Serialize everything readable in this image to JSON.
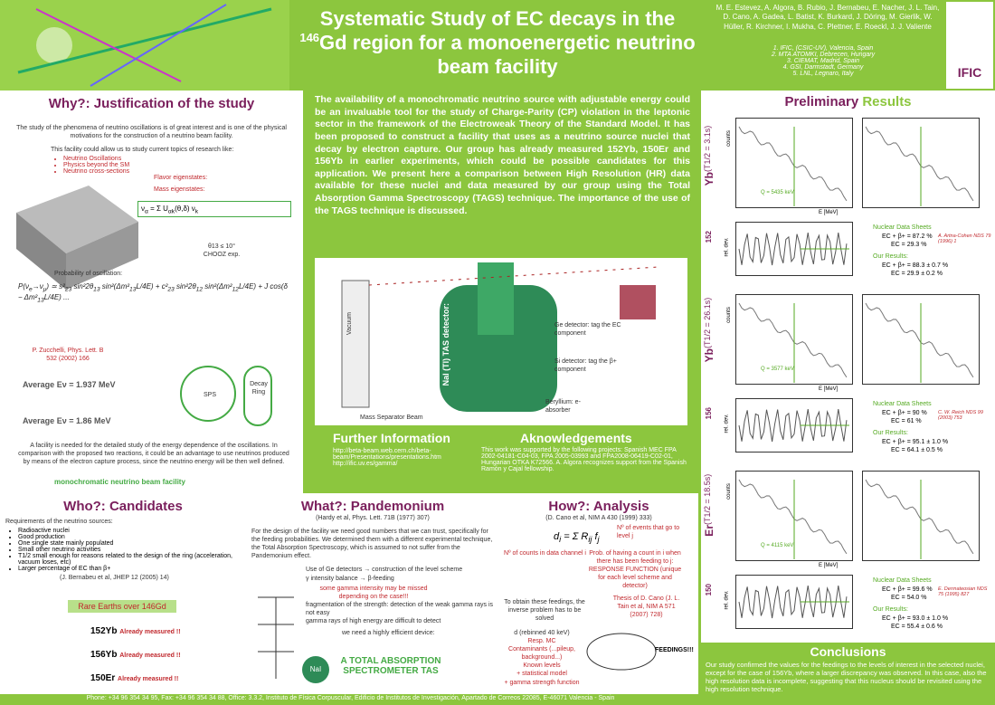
{
  "header": {
    "title_a": "Systematic Study of EC decays in the",
    "title_sup": "146",
    "title_b": "Gd region for a monoenergetic neutrino beam facility",
    "authors": "M. E. Estevez, A. Algora, B. Rubio, J. Bernabeu, E. Nacher, J. L. Tain, D. Cano, A. Gadea, L. Batist, K. Burkard, J. Döring, M. Gierlik, W. Hüller, R. Kirchner, I. Mukha, C. Plettner, E. Roeckl, J. J. Valiente",
    "affiliations": [
      "1. IFIC, (CSIC-UV), Valencia, Spain",
      "2. MTA ATOMKI, Debrecen, Hungary",
      "3. CIEMAT, Madrid, Spain",
      "4. GSI, Darmstadt, Germany",
      "5. LNL, Legnaro, Italy"
    ],
    "logo": "IFIC"
  },
  "why": {
    "heading": "Why?: Justification of the study",
    "intro": "The study of the phenomena of neutrino oscillations is of great interest and is one of the physical motivations for the construction of a neutrino beam facility.",
    "lead": "This facility could allow us to study current topics of research like:",
    "topics": [
      "Neutrino Oscillations",
      "Physics beyond the SM",
      "Neutrino cross-sections"
    ],
    "flavor": "Flavor eigenstates:",
    "mass": "Mass eigenstates:",
    "chooz": "θ13 ≤ 10° CHOOZ exp.",
    "prob": "Probability of oscillation:",
    "ref": "P. Zucchelli, Phys. Lett. B 532 (2002) 166",
    "avg1": "Average Eν = 1.937 MeV",
    "avg2": "Average Eν = 1.86 MeV",
    "sps": "SPS",
    "decay": "Decay Ring",
    "text": "A facility is needed for the detailed study of the energy dependence of the oscillations. In comparison with the proposed two reactions, it could be an advantage to use neutrinos produced by means of the electron capture process, since the neutrino energy will be then well defined.",
    "mono": "monochromatic neutrino beam facility"
  },
  "center": {
    "abstract": "The availability of a monochromatic neutrino source with adjustable energy could be an invaluable tool for the study of Charge-Parity (CP) violation in the leptonic sector in the framework of the Electroweak Theory of the Standard Model. It has been proposed to construct a facility that uses as a neutrino source nuclei that decay by electron capture. Our group has already measured 152Yb, 150Er and 156Yb in earlier experiments, which could be possible candidates for this application. We present here a comparison between High Resolution (HR) data available for these nuclei and data measured by our group using the Total Absorption Gamma Spectroscopy (TAGS) technique. The importance of the use of the TAGS technique is discussed.",
    "vacuum": "Vacuum",
    "tas": "NaI (Tl) TAS detector:",
    "mass_sep": "Mass Separator Beam",
    "ge": "Ge detector: tag the EC component",
    "si": "Si detector: tag the β+ component",
    "be": "Beryllium: e- absorber",
    "xr": "XR"
  },
  "further": {
    "heading": "Further Information",
    "links": [
      "http://beta-beam.web.cern.ch/beta-beam/Presentations/presentations.htm",
      "http://ific.uv.es/gamma/"
    ]
  },
  "ack": {
    "heading": "Aknowledgements",
    "text": "This work was supported by the following projects: Spanish MEC FPA 2002-04181-C04-03, FPA 2005-03993 and FPA2008-06419-C02-01, Hungarian OTKA K72566. A. Algora recognizes support from the Spanish Ramón y Cajal fellowship."
  },
  "who": {
    "heading": "Who?: Candidates",
    "lead": "Requirements of the neutrino sources:",
    "items": [
      "Radioactive nuclei",
      "Good production",
      "One single state mainly populated",
      "Small other neutrino activities",
      "T1/2 small enough for reasons related to the design of the ring (acceleration, vacuum loses, etc)",
      "Larger percentage of EC than β+"
    ],
    "ref": "(J. Bernabeu et al, JHEP 12 (2005) 14)",
    "box": "Rare Earths over 146Gd",
    "nuclei": [
      "152Yb",
      "156Yb",
      "150Er"
    ],
    "status": "Already measured !!"
  },
  "what": {
    "heading": "What?: Pandemonium",
    "ref": "(Hardy et al, Phys. Lett. 71B (1977) 307)",
    "text": "For the design of the facility we need good numbers that we can trust, specifically for the feeding probabilities. We determined them with a different experimental technique, the Total Absorption Spectroscopy, which is assumed to not suffer from the Pandemonium effect.",
    "ge_use": "Use of Ge detectors → construction of the level scheme",
    "balance": "γ intensity balance → β-feeding",
    "missed": "some gamma intensity may be missed depending on the case!!!",
    "frag": "fragmentation of the strength: detection of the weak gamma rays is not easy",
    "eff": "gamma rays of high energy are difficult to detect",
    "need": "we need a highly efficient device:",
    "tas": "A TOTAL ABSORPTION SPECTROMETER TAS",
    "nai": "NaI"
  },
  "how": {
    "heading": "How?: Analysis",
    "ref": "(D. Cano et al, NIM A 430 (1999) 333)",
    "counts": "Nº of counts in data channel i",
    "events": "Nº of events that go to level j",
    "prob": "Prob. of having a count in i when there has been feeding to j: RESPONSE FUNCTION (unique for each level scheme and detector)",
    "obtain": "To obtain these feedings, the inverse problem has to be solved",
    "thesis": "Thesis of D. Cano (J. L. Tain et al, NIM A 571 (2007) 728)",
    "inputs": [
      "d (rebinned 40 keV)",
      "Resp. MC",
      "Contaminants (...pileup, background...)",
      "Known levels",
      "+ statistical model",
      "+ gamma strength function"
    ],
    "out": "FEEDINGS!!!"
  },
  "results": {
    "heading_a": "Preliminary",
    "heading_b": "Results",
    "counts": "counts",
    "energy": "E [MeV]",
    "resid": "rel. dev.",
    "panels": [
      {
        "mass": "152",
        "el": "Yb",
        "half": "(T1/2 = 3.1s)",
        "q": "Q = 5435 keV",
        "nds": "Nuclear Data Sheets",
        "nds_lines": [
          "EC + β+ = 87.2 %",
          "EC = 29.3 %"
        ],
        "nds_ref": "A. Artna-Cohen NDS 79 (1996) 1",
        "ours": "Our Results:",
        "our_lines": [
          "EC + β+ = 88.3 ± 0.7 %",
          "EC = 29.9 ± 0.2 %"
        ]
      },
      {
        "mass": "156",
        "el": "Yb",
        "half": "(T1/2 = 26.1s)",
        "q": "Q = 3577 keV",
        "nds": "Nuclear Data Sheets",
        "nds_lines": [
          "EC + β+ = 90 %",
          "EC = 61 %"
        ],
        "nds_ref": "C. W. Reich NDS 99 (2003) 753",
        "ours": "Our Results:",
        "our_lines": [
          "EC + β+ = 95.1 ± 1.0 %",
          "EC = 64.1 ± 0.5 %"
        ]
      },
      {
        "mass": "150",
        "el": "Er",
        "half": "(T1/2 = 18.5s)",
        "q": "Q = 4115 keV",
        "nds": "Nuclear Data Sheets",
        "nds_lines": [
          "EC + β+ = 99.6 %",
          "EC = 54.0 %"
        ],
        "nds_ref": "E. Derrnateosian NDS 75 (1995) 827",
        "ours": "Our Results:",
        "our_lines": [
          "EC + β+ = 93.0 ± 1.0 %",
          "EC = 55.4 ± 0.6 %"
        ]
      }
    ]
  },
  "conclusions": {
    "heading": "Conclusions",
    "text": "Our study confirmed the values for the feedings to the levels of interest in the selected nuclei, except for the case of 156Yb, where a larger discrepancy was observed. In this case, also the high resolution data is incomplete, suggesting that this nucleus should be revisited using the high resolution technique."
  },
  "footer": "Phone: +34 96 354 34 95, Fax: +34 96 354 34 88, Office: 3.3.2, Instituto de Física Corpuscular, Edificio de Institutos de Investigación, Apartado de Correos 22085, E-46071 Valencia - Spain"
}
